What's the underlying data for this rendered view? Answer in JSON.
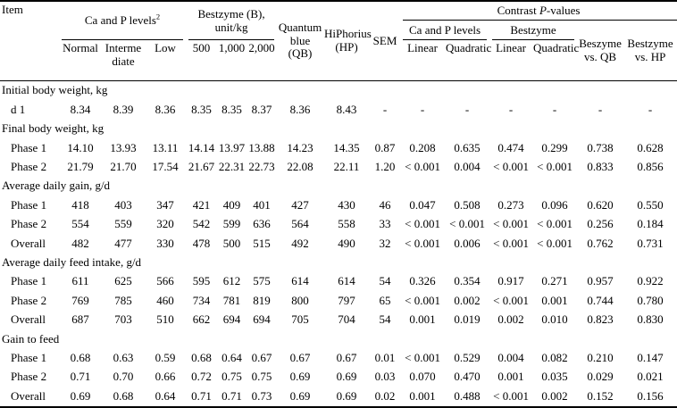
{
  "colors": {
    "text": "#000000",
    "background": "#ffffff",
    "rule": "#000000"
  },
  "table": {
    "header": {
      "item_label": "Item",
      "ca_p_levels_group": "Ca and P levels",
      "ca_p_levels_sup": "2",
      "bestzyme_group": "Bestzyme (B), unit/kg",
      "quantum_blue": "Quantum blue (QB)",
      "hiphorius": "HiPhorius (HP)",
      "sem": "SEM",
      "contrast_prefix": "Contrast ",
      "contrast_italic": "P",
      "contrast_suffix": "-values",
      "ca_p_sub": [
        "Normal",
        "Intermediate",
        "Low"
      ],
      "bestzyme_sub": [
        "500",
        "1,000",
        "2,000"
      ],
      "contrast_ca_p_group": "Ca and P levels",
      "contrast_bestzyme_group": "Bestzyme",
      "contrast_subcols": [
        "Linear",
        "Quadratic",
        "Linear",
        "Quadratic"
      ],
      "beszyme_vs_qb": "Beszyme vs. QB",
      "bestzyme_vs_hp": "Bestzyme vs. HP"
    },
    "sections": [
      {
        "title": "Initial body weight, kg",
        "rows": [
          {
            "label": "d 1",
            "values": [
              "8.34",
              "8.39",
              "8.36",
              "8.35",
              "8.35",
              "8.37",
              "8.36",
              "8.43",
              "-",
              "-",
              "-",
              "-",
              "-",
              "-",
              "-"
            ]
          }
        ]
      },
      {
        "title": "Final body weight, kg",
        "rows": [
          {
            "label": "Phase 1",
            "values": [
              "14.10",
              "13.93",
              "13.11",
              "14.14",
              "13.97",
              "13.88",
              "14.23",
              "14.35",
              "0.87",
              "0.208",
              "0.635",
              "0.474",
              "0.299",
              "0.738",
              "0.628"
            ]
          },
          {
            "label": "Phase 2",
            "values": [
              "21.79",
              "21.70",
              "17.54",
              "21.67",
              "22.31",
              "22.73",
              "22.08",
              "22.11",
              "1.20",
              "< 0.001",
              "0.004",
              "< 0.001",
              "< 0.001",
              "0.833",
              "0.856"
            ]
          }
        ]
      },
      {
        "title": "Average daily gain, g/d",
        "rows": [
          {
            "label": "Phase 1",
            "values": [
              "418",
              "403",
              "347",
              "421",
              "409",
              "401",
              "427",
              "430",
              "46",
              "0.047",
              "0.508",
              "0.273",
              "0.096",
              "0.620",
              "0.550"
            ]
          },
          {
            "label": "Phase 2",
            "values": [
              "554",
              "559",
              "320",
              "542",
              "599",
              "636",
              "564",
              "558",
              "33",
              "< 0.001",
              "< 0.001",
              "< 0.001",
              "< 0.001",
              "0.256",
              "0.184"
            ]
          },
          {
            "label": "Overall",
            "values": [
              "482",
              "477",
              "330",
              "478",
              "500",
              "515",
              "492",
              "490",
              "32",
              "< 0.001",
              "0.006",
              "< 0.001",
              "< 0.001",
              "0.762",
              "0.731"
            ]
          }
        ]
      },
      {
        "title": "Average daily feed intake, g/d",
        "rows": [
          {
            "label": "Phase 1",
            "values": [
              "611",
              "625",
              "566",
              "595",
              "612",
              "575",
              "614",
              "614",
              "54",
              "0.326",
              "0.354",
              "0.917",
              "0.271",
              "0.957",
              "0.922"
            ]
          },
          {
            "label": "Phase 2",
            "values": [
              "769",
              "785",
              "460",
              "734",
              "781",
              "819",
              "800",
              "797",
              "65",
              "< 0.001",
              "0.002",
              "< 0.001",
              "0.001",
              "0.744",
              "0.780"
            ]
          },
          {
            "label": "Overall",
            "values": [
              "687",
              "703",
              "510",
              "662",
              "694",
              "694",
              "705",
              "704",
              "54",
              "0.001",
              "0.019",
              "0.002",
              "0.010",
              "0.823",
              "0.830"
            ]
          }
        ]
      },
      {
        "title": "Gain to feed",
        "rows": [
          {
            "label": "Phase 1",
            "values": [
              "0.68",
              "0.63",
              "0.59",
              "0.68",
              "0.64",
              "0.67",
              "0.67",
              "0.67",
              "0.01",
              "< 0.001",
              "0.529",
              "0.004",
              "0.082",
              "0.210",
              "0.147"
            ]
          },
          {
            "label": "Phase 2",
            "values": [
              "0.71",
              "0.70",
              "0.66",
              "0.72",
              "0.75",
              "0.75",
              "0.69",
              "0.69",
              "0.03",
              "0.070",
              "0.470",
              "0.001",
              "0.035",
              "0.029",
              "0.021"
            ]
          },
          {
            "label": "Overall",
            "values": [
              "0.69",
              "0.68",
              "0.64",
              "0.71",
              "0.71",
              "0.73",
              "0.69",
              "0.69",
              "0.02",
              "0.001",
              "0.488",
              "< 0.001",
              "0.002",
              "0.152",
              "0.156"
            ]
          }
        ]
      }
    ]
  }
}
